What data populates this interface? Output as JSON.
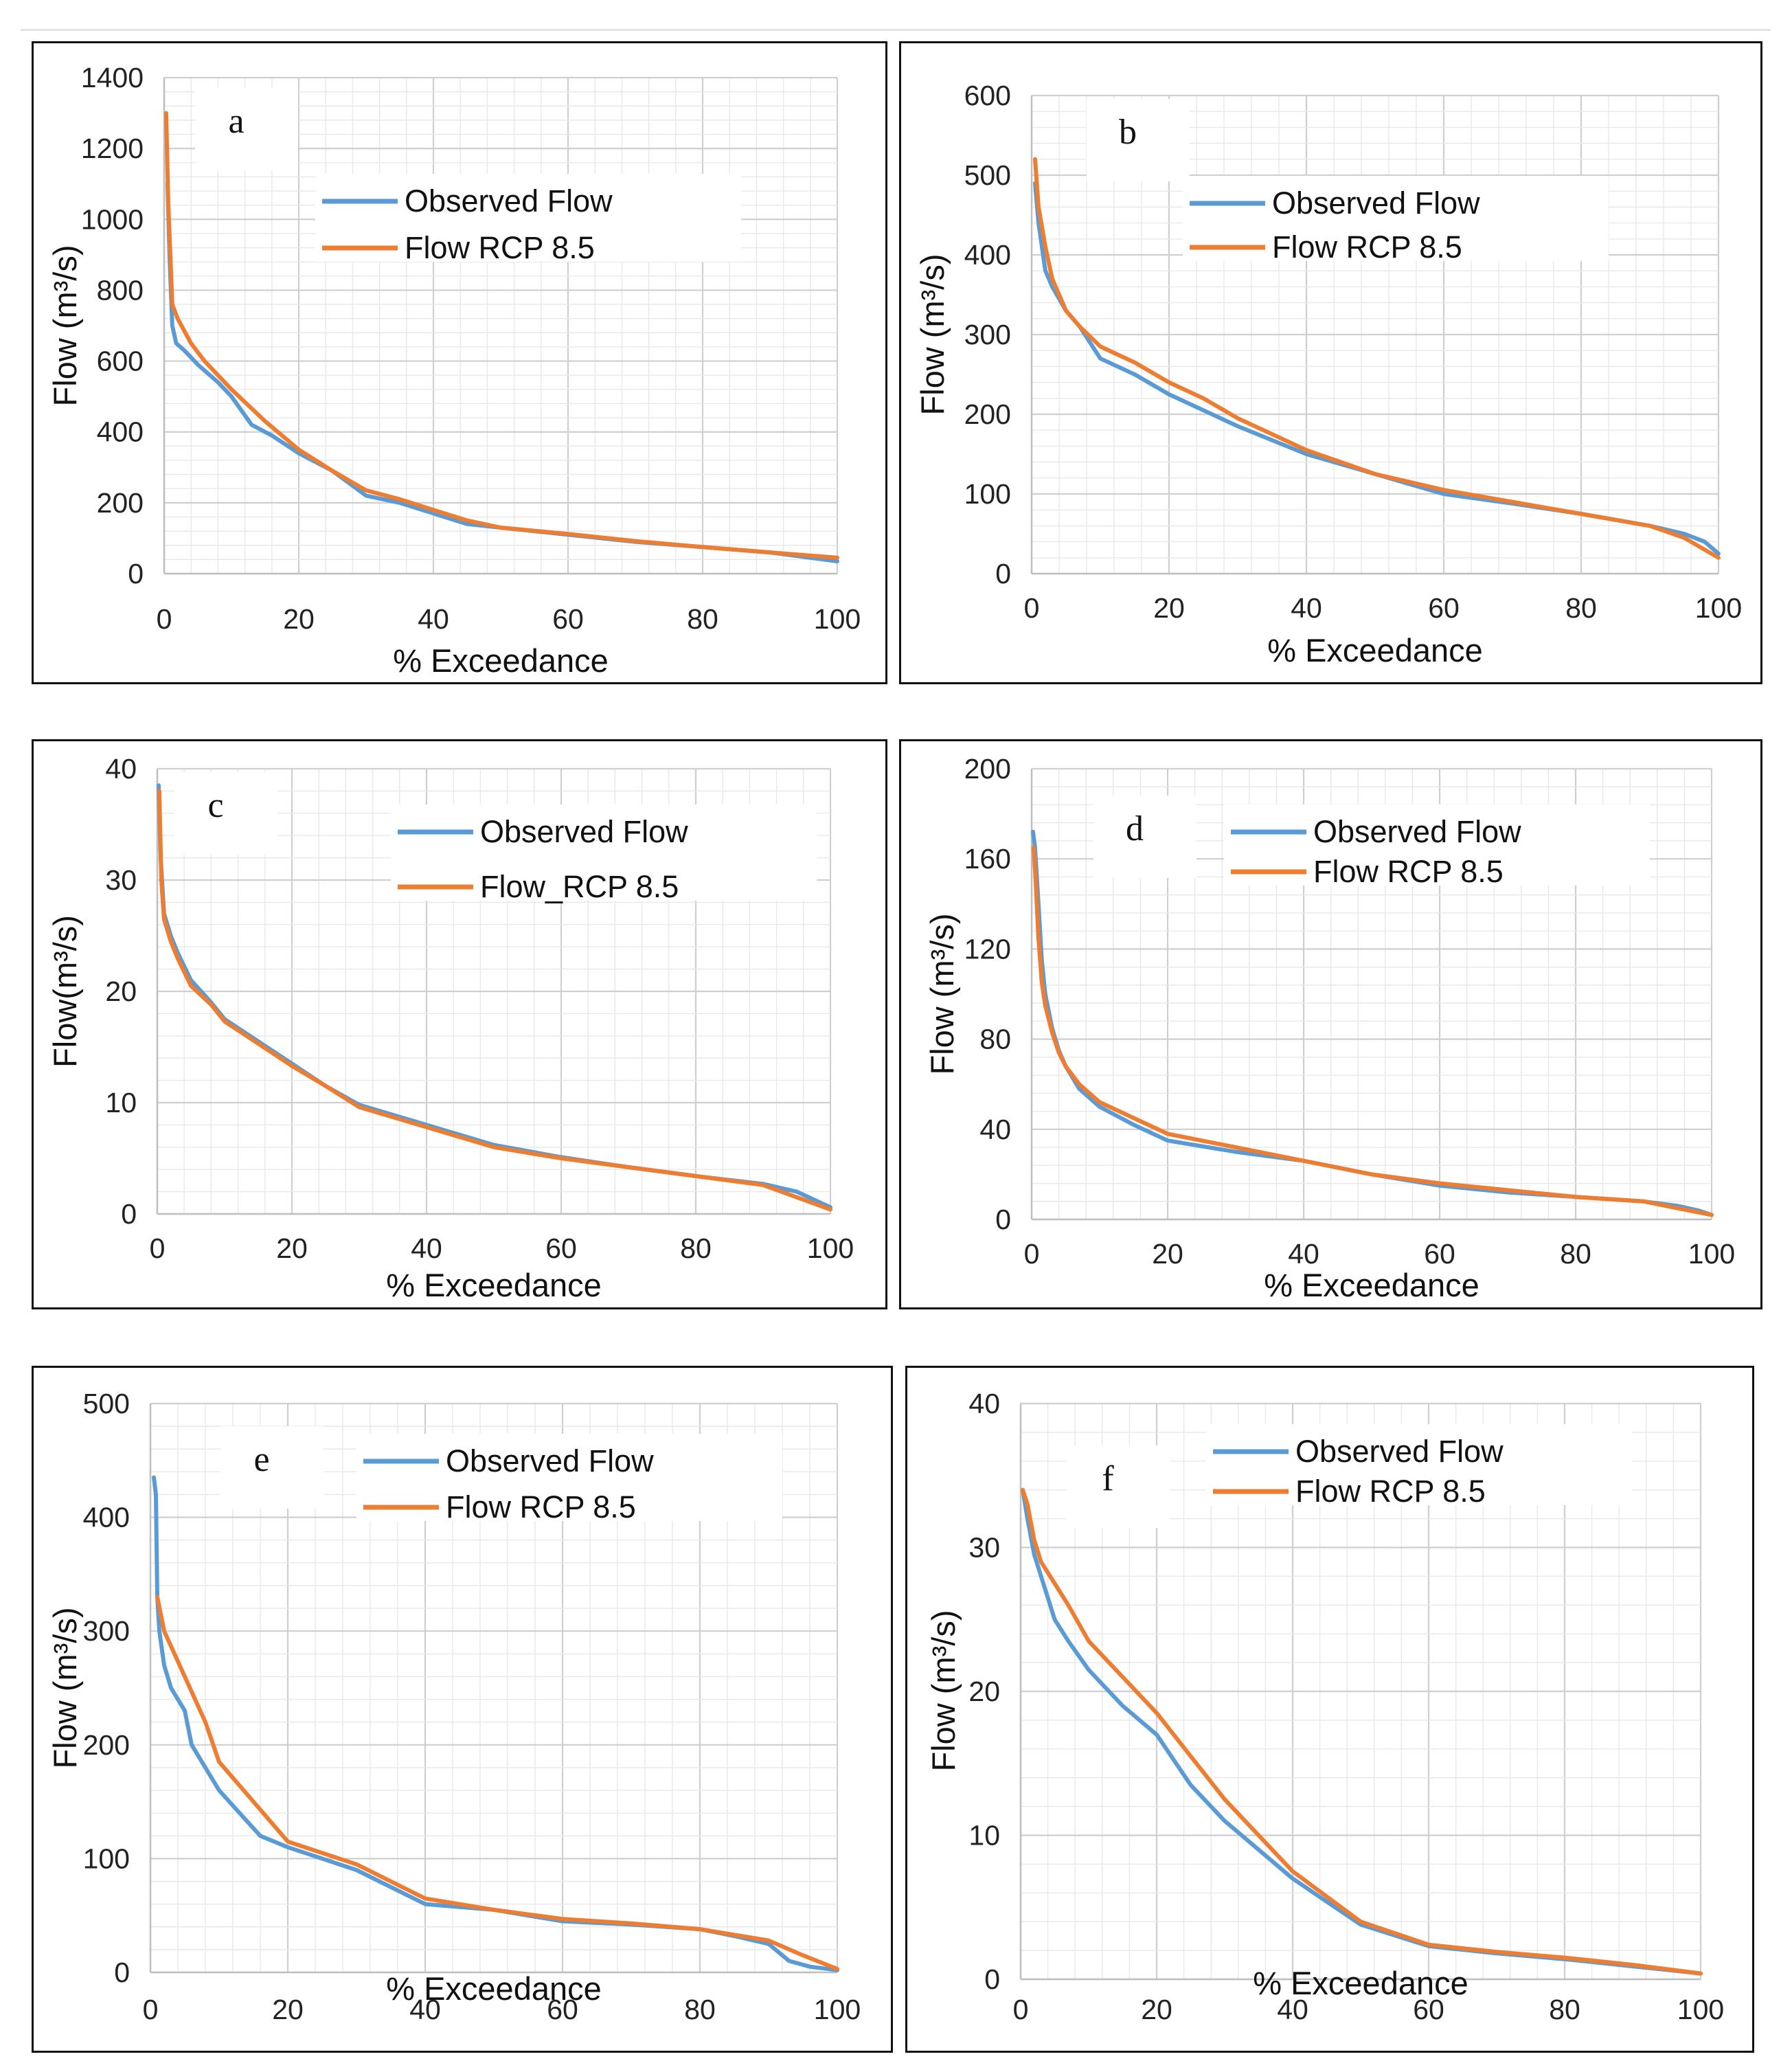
{
  "colors": {
    "observed": "#5B9BD5",
    "rcp": "#ED7D31",
    "grid": "#d9d9d9",
    "axis": "#bfbfbf"
  },
  "chart_data": [
    {
      "type": "line",
      "panel_label": "a",
      "xlabel": "% Exceedance",
      "ylabel": "Flow (m³/s)",
      "xlim": [
        0,
        100
      ],
      "ylim": [
        0,
        1400
      ],
      "xticks": [
        0,
        20,
        40,
        60,
        80,
        100
      ],
      "yticks": [
        0,
        200,
        400,
        600,
        800,
        1000,
        1200,
        1400
      ],
      "grid": true,
      "legend_position": "top-center",
      "series": [
        {
          "name": "Observed Flow",
          "x": [
            0.5,
            0.8,
            1.2,
            1.8,
            3,
            5,
            8,
            10,
            13,
            16,
            20,
            25,
            30,
            35,
            40,
            45,
            50,
            60,
            70,
            80,
            90,
            100
          ],
          "y": [
            1100,
            900,
            700,
            650,
            630,
            590,
            540,
            500,
            420,
            390,
            340,
            290,
            220,
            200,
            170,
            140,
            130,
            110,
            90,
            75,
            60,
            35
          ]
        },
        {
          "name": "Flow RCP 8.5",
          "x": [
            0.3,
            0.6,
            1.2,
            2,
            4,
            6,
            10,
            15,
            20,
            25,
            30,
            35,
            40,
            45,
            50,
            60,
            70,
            80,
            90,
            100
          ],
          "y": [
            1300,
            1050,
            760,
            720,
            650,
            600,
            520,
            430,
            350,
            290,
            235,
            210,
            180,
            150,
            130,
            112,
            92,
            75,
            60,
            45
          ]
        }
      ]
    },
    {
      "type": "line",
      "panel_label": "b",
      "xlabel": "% Exceedance",
      "ylabel": "Flow (m³/s)",
      "xlim": [
        0,
        100
      ],
      "ylim": [
        0,
        600
      ],
      "xticks": [
        0,
        20,
        40,
        60,
        80,
        100
      ],
      "yticks": [
        0,
        100,
        200,
        300,
        400,
        500,
        600
      ],
      "grid": true,
      "legend_position": "top-center",
      "series": [
        {
          "name": "Observed Flow",
          "x": [
            0.5,
            1,
            2,
            3,
            5,
            7,
            10,
            15,
            20,
            25,
            30,
            40,
            50,
            60,
            70,
            80,
            90,
            95,
            98,
            100
          ],
          "y": [
            490,
            440,
            380,
            360,
            330,
            310,
            270,
            250,
            225,
            205,
            185,
            150,
            125,
            100,
            88,
            75,
            60,
            50,
            40,
            25
          ]
        },
        {
          "name": "Flow RCP 8.5",
          "x": [
            0.5,
            1,
            2,
            3,
            5,
            7,
            10,
            15,
            20,
            25,
            30,
            40,
            50,
            60,
            70,
            80,
            90,
            95,
            100
          ],
          "y": [
            520,
            460,
            410,
            370,
            330,
            310,
            285,
            265,
            240,
            220,
            195,
            155,
            125,
            105,
            90,
            75,
            60,
            45,
            20
          ]
        }
      ]
    },
    {
      "type": "line",
      "panel_label": "c",
      "xlabel": "% Exceedance",
      "ylabel": "Flow(m³/s)",
      "xlim": [
        0,
        100
      ],
      "ylim": [
        0,
        40
      ],
      "xticks": [
        0,
        20,
        40,
        60,
        80,
        100
      ],
      "yticks": [
        0,
        10,
        20,
        30,
        40
      ],
      "grid": true,
      "legend_position": "top-center",
      "series": [
        {
          "name": "Observed Flow",
          "x": [
            0.2,
            0.5,
            1,
            2,
            3,
            5,
            8,
            10,
            15,
            20,
            25,
            30,
            40,
            50,
            60,
            70,
            80,
            90,
            95,
            100
          ],
          "y": [
            38.5,
            32,
            27,
            25,
            23.5,
            21,
            19,
            17.5,
            15.5,
            13.5,
            11.5,
            9.8,
            8,
            6.2,
            5.1,
            4.2,
            3.4,
            2.7,
            2,
            0.6
          ]
        },
        {
          "name": "Flow_RCP 8.5",
          "x": [
            0.3,
            0.6,
            1,
            2,
            3,
            5,
            8,
            10,
            15,
            20,
            25,
            30,
            40,
            50,
            60,
            70,
            80,
            90,
            100
          ],
          "y": [
            38,
            30,
            26.5,
            24.5,
            23,
            20.5,
            18.8,
            17.3,
            15.3,
            13.3,
            11.5,
            9.6,
            7.8,
            6,
            5,
            4.2,
            3.4,
            2.6,
            0.4
          ]
        }
      ]
    },
    {
      "type": "line",
      "panel_label": "d",
      "xlabel": "% Exceedance",
      "ylabel": "Flow (m³/s)",
      "xlim": [
        0,
        100
      ],
      "ylim": [
        0,
        200
      ],
      "xticks": [
        0,
        20,
        40,
        60,
        80,
        100
      ],
      "yticks": [
        0,
        40,
        80,
        120,
        160,
        200
      ],
      "grid": true,
      "legend_position": "top-center",
      "series": [
        {
          "name": "Observed Flow",
          "x": [
            0.2,
            0.5,
            1,
            1.5,
            2,
            3,
            4,
            5,
            7,
            10,
            15,
            20,
            30,
            40,
            50,
            60,
            70,
            80,
            90,
            95,
            98,
            100
          ],
          "y": [
            172,
            165,
            140,
            115,
            100,
            85,
            75,
            68,
            58,
            50,
            42,
            35,
            30,
            26,
            20,
            15,
            12,
            10,
            8,
            6,
            4,
            2
          ]
        },
        {
          "name": "Flow RCP 8.5",
          "x": [
            0.3,
            0.6,
            1,
            1.5,
            2,
            3,
            4,
            5,
            7,
            10,
            15,
            20,
            30,
            40,
            50,
            60,
            70,
            80,
            90,
            100
          ],
          "y": [
            165,
            150,
            125,
            105,
            95,
            83,
            74,
            68,
            60,
            52,
            45,
            38,
            32,
            26,
            20,
            16,
            13,
            10,
            8,
            2
          ]
        }
      ]
    },
    {
      "type": "line",
      "panel_label": "e",
      "xlabel": "% Exceedance",
      "ylabel": "Flow (m³/s)",
      "xlim": [
        0,
        100
      ],
      "ylim": [
        0,
        500
      ],
      "xticks": [
        0,
        20,
        40,
        60,
        80,
        100
      ],
      "yticks": [
        0,
        100,
        200,
        300,
        400,
        500
      ],
      "grid": true,
      "legend_position": "top-center",
      "series": [
        {
          "name": "Observed Flow",
          "x": [
            0.5,
            0.8,
            1,
            1.3,
            2,
            3,
            5,
            6,
            8,
            10,
            13,
            16,
            20,
            25,
            30,
            40,
            50,
            60,
            70,
            80,
            85,
            90,
            93,
            96,
            100
          ],
          "y": [
            435,
            420,
            330,
            300,
            270,
            250,
            230,
            200,
            180,
            160,
            140,
            120,
            110,
            100,
            90,
            60,
            55,
            45,
            42,
            38,
            32,
            25,
            10,
            5,
            2
          ]
        },
        {
          "name": "Flow RCP 8.5",
          "x": [
            1,
            2,
            5,
            8,
            10,
            15,
            20,
            30,
            40,
            50,
            60,
            70,
            80,
            90,
            95,
            100
          ],
          "y": [
            330,
            300,
            260,
            220,
            185,
            150,
            115,
            95,
            65,
            55,
            47,
            43,
            38,
            28,
            15,
            3
          ]
        }
      ]
    },
    {
      "type": "line",
      "panel_label": "f",
      "xlabel": "% Exceedance",
      "ylabel": "Flow (m³/s)",
      "xlim": [
        0,
        100
      ],
      "ylim": [
        0,
        40
      ],
      "xticks": [
        0,
        20,
        40,
        60,
        80,
        100
      ],
      "yticks": [
        0,
        10,
        20,
        30,
        40
      ],
      "grid": true,
      "legend_position": "top-center",
      "series": [
        {
          "name": "Observed Flow",
          "x": [
            0.3,
            1,
            2,
            3,
            4,
            5,
            7,
            10,
            15,
            20,
            25,
            30,
            40,
            50,
            60,
            70,
            80,
            90,
            100
          ],
          "y": [
            34,
            32,
            29.5,
            28,
            26.5,
            25,
            23.5,
            21.5,
            19,
            17,
            13.5,
            11,
            7,
            3.8,
            2.3,
            1.8,
            1.4,
            0.9,
            0.4
          ]
        },
        {
          "name": "Flow RCP 8.5",
          "x": [
            0.3,
            1,
            2,
            3,
            5,
            7,
            10,
            15,
            20,
            25,
            30,
            40,
            50,
            60,
            70,
            80,
            90,
            100
          ],
          "y": [
            34,
            33,
            30.5,
            29,
            27.5,
            26,
            23.5,
            21,
            18.5,
            15.5,
            12.5,
            7.5,
            4,
            2.4,
            1.9,
            1.5,
            1,
            0.4
          ]
        }
      ]
    }
  ]
}
